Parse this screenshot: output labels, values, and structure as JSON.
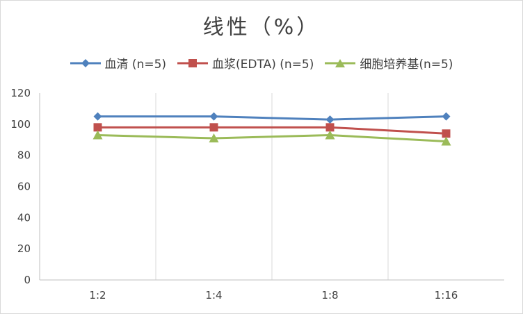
{
  "chart_data": {
    "type": "line",
    "title": "线性（%）",
    "categories": [
      "1:2",
      "1:4",
      "1:8",
      "1:16"
    ],
    "ylim": [
      0,
      120
    ],
    "yticks": [
      0,
      20,
      40,
      60,
      80,
      100,
      120
    ],
    "grid": "vertical category separators",
    "legend_position": "top",
    "series": [
      {
        "name": "血清 (n=5)",
        "values": [
          105,
          105,
          103,
          105
        ],
        "color": "#4f81bd",
        "marker": "diamond"
      },
      {
        "name": "血浆(EDTA) (n=5)",
        "values": [
          98,
          98,
          98,
          94
        ],
        "color": "#c0504d",
        "marker": "square"
      },
      {
        "name": "细胞培养基(n=5)",
        "values": [
          93,
          91,
          93,
          89
        ],
        "color": "#9bbb59",
        "marker": "triangle"
      }
    ]
  }
}
